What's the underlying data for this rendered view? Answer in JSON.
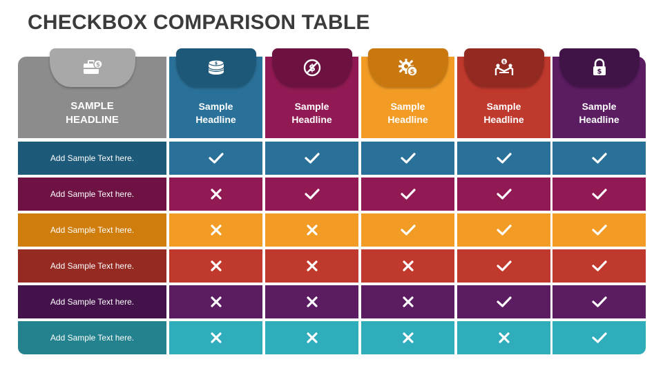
{
  "slide": {
    "title": "CHECKBOX COMPARISON TABLE"
  },
  "header": {
    "first": {
      "label": "SAMPLE\nHEADLINE",
      "icon": "briefcase-dollar-icon",
      "color": "#8c8c8c",
      "tab_color": "#a8a8a8"
    },
    "columns": [
      {
        "label": "Sample\nHeadline",
        "icon": "coin-stack-icon",
        "color": "#2a7199",
        "tab_color": "#1e5878"
      },
      {
        "label": "Sample\nHeadline",
        "icon": "no-dollar-icon",
        "color": "#911a54",
        "tab_color": "#6d1140"
      },
      {
        "label": "Sample\nHeadline",
        "icon": "gear-dollar-icon",
        "color": "#f29c26",
        "tab_color": "#c9780f"
      },
      {
        "label": "Sample\nHeadline",
        "icon": "handshake-deal-icon",
        "color": "#c0392d",
        "tab_color": "#922a21"
      },
      {
        "label": "Sample\nHeadline",
        "icon": "padlock-dollar-icon",
        "color": "#5b1c62",
        "tab_color": "#411448"
      }
    ]
  },
  "rows": [
    {
      "label": "Add Sample Text here.",
      "label_color": "#1d5a79",
      "cell_color": "#2a7199",
      "values": [
        true,
        true,
        true,
        true,
        true
      ]
    },
    {
      "label": "Add Sample Text here.",
      "label_color": "#6e1243",
      "cell_color": "#911a54",
      "values": [
        false,
        true,
        true,
        true,
        true
      ]
    },
    {
      "label": "Add Sample Text here.",
      "label_color": "#cf7d0d",
      "cell_color": "#f29c26",
      "values": [
        false,
        false,
        true,
        true,
        true
      ]
    },
    {
      "label": "Add Sample Text here.",
      "label_color": "#952a22",
      "cell_color": "#c0392d",
      "values": [
        false,
        false,
        false,
        true,
        true
      ]
    },
    {
      "label": "Add Sample Text here.",
      "label_color": "#44124b",
      "cell_color": "#5b1c62",
      "values": [
        false,
        false,
        false,
        true,
        true
      ]
    },
    {
      "label": "Add Sample Text here.",
      "label_color": "#24828f",
      "cell_color": "#2fadbb",
      "values": [
        false,
        false,
        false,
        false,
        true
      ]
    }
  ]
}
